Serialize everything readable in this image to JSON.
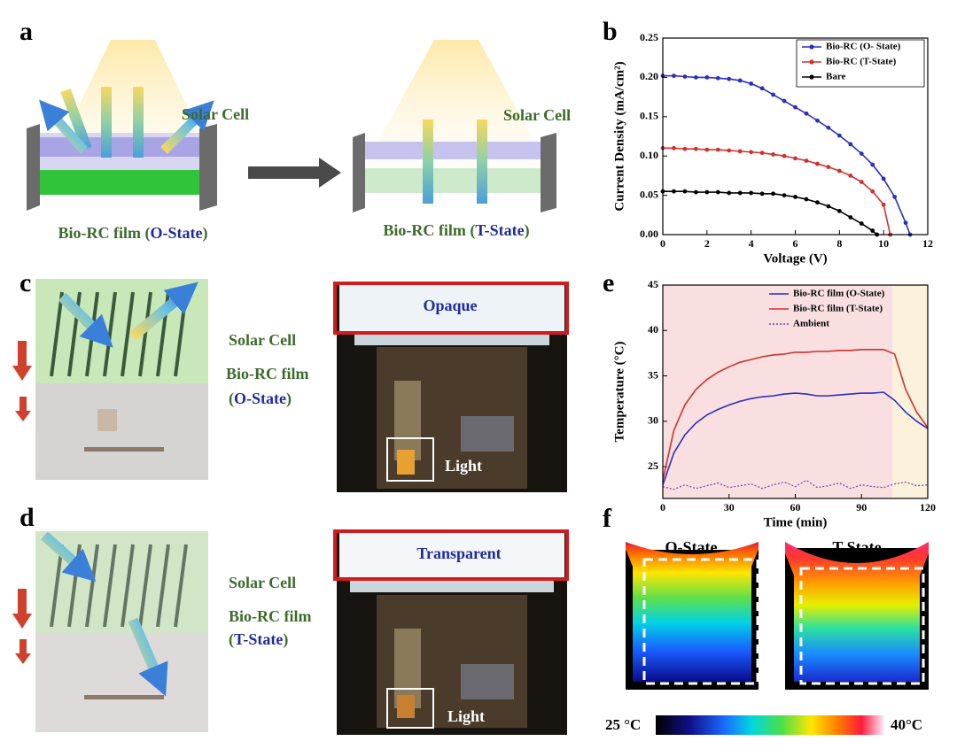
{
  "panel_labels": [
    "a",
    "b",
    "c",
    "d",
    "e",
    "f"
  ],
  "panel_a": {
    "solar_cell_left": "Solar Cell",
    "solar_cell_right": "Solar Cell",
    "film_left": [
      "Bio-RC film (",
      "O-State",
      ")"
    ],
    "film_right": [
      "Bio-RC film (",
      "T-State",
      ")"
    ]
  },
  "panel_c": {
    "solar_cell": "Solar Cell",
    "film": "Bio-RC film",
    "state": [
      "(",
      "O-State",
      ")"
    ],
    "photo_title": "Opaque",
    "light": "Light"
  },
  "panel_d": {
    "solar_cell": "Solar Cell",
    "film": "Bio-RC film",
    "state": [
      "(",
      "T-State",
      ")"
    ],
    "photo_title": "Transparent",
    "light": "Light"
  },
  "panel_f": {
    "left": "O-State",
    "right": "T-State",
    "scale_min": "25 °C",
    "scale_max": "40°C"
  },
  "chart_data": [
    {
      "type": "line",
      "xlabel": "Voltage (V)",
      "ylabel": "Current Density (mA/cm²)",
      "xlim": [
        0,
        12
      ],
      "ylim": [
        0,
        0.25
      ],
      "xticks": [
        0,
        2,
        4,
        6,
        8,
        10,
        12
      ],
      "yticks": [
        {
          "value": 0,
          "label": "0.00"
        },
        0.05,
        {
          "value": 0.1,
          "label": "0.10"
        },
        0.15,
        {
          "value": 0.2,
          "label": "0.20"
        },
        0.25
      ],
      "legend": "upper right",
      "legend_frame": true,
      "series": [
        {
          "name": "Bio-RC (O- State)",
          "color": "#2a2fbf",
          "marker": "circle",
          "x": [
            0,
            0.5,
            1,
            1.5,
            2,
            2.5,
            3,
            3.5,
            4,
            4.5,
            5,
            5.5,
            6,
            6.5,
            7,
            7.5,
            8,
            8.5,
            9,
            9.5,
            10,
            10.5,
            11,
            11.2
          ],
          "values": [
            0.202,
            0.202,
            0.201,
            0.2,
            0.2,
            0.199,
            0.198,
            0.196,
            0.192,
            0.186,
            0.178,
            0.17,
            0.162,
            0.154,
            0.145,
            0.136,
            0.126,
            0.115,
            0.103,
            0.089,
            0.071,
            0.048,
            0.015,
            0
          ]
        },
        {
          "name": "Bio-RC (T-State)",
          "color": "#d0312d",
          "marker": "circle",
          "x": [
            0,
            0.5,
            1,
            1.5,
            2,
            2.5,
            3,
            3.5,
            4,
            4.5,
            5,
            5.5,
            6,
            6.5,
            7,
            7.5,
            8,
            8.5,
            9,
            9.5,
            10,
            10.3
          ],
          "values": [
            0.11,
            0.11,
            0.109,
            0.109,
            0.108,
            0.108,
            0.107,
            0.106,
            0.105,
            0.104,
            0.102,
            0.1,
            0.097,
            0.094,
            0.09,
            0.086,
            0.081,
            0.075,
            0.067,
            0.055,
            0.038,
            0
          ]
        },
        {
          "name": "Bare",
          "color": "#000000",
          "marker": "circle",
          "x": [
            0,
            0.5,
            1,
            1.5,
            2,
            2.5,
            3,
            3.5,
            4,
            4.5,
            5,
            5.5,
            6,
            6.5,
            7,
            7.5,
            8,
            8.5,
            9,
            9.5,
            9.7
          ],
          "values": [
            0.055,
            0.055,
            0.055,
            0.054,
            0.054,
            0.054,
            0.053,
            0.053,
            0.053,
            0.052,
            0.052,
            0.05,
            0.048,
            0.045,
            0.041,
            0.036,
            0.03,
            0.022,
            0.014,
            0.005,
            0
          ]
        }
      ]
    },
    {
      "type": "line",
      "xlabel": "Time (min)",
      "ylabel": "Temperature (°C)",
      "xlim": [
        0,
        120
      ],
      "ylim": [
        21.5,
        45
      ],
      "xticks": [
        0,
        30,
        60,
        90,
        120
      ],
      "yticks": [
        25,
        30,
        35,
        40,
        45
      ],
      "legend": "upper right",
      "legend_frame": false,
      "spans": [
        {
          "from": 0,
          "to": 104,
          "color": "#f9dfe0"
        },
        {
          "from": 104,
          "to": 120,
          "color": "#fcf1da"
        }
      ],
      "x": [
        0,
        5,
        10,
        15,
        20,
        25,
        30,
        35,
        40,
        45,
        50,
        55,
        60,
        65,
        70,
        75,
        80,
        85,
        90,
        95,
        100,
        105,
        110,
        115,
        120
      ],
      "series": [
        {
          "name": "Bio-RC film (O-State)",
          "color": "#2a2fbf",
          "values": [
            23,
            26.5,
            28.5,
            29.8,
            30.7,
            31.3,
            31.8,
            32.2,
            32.5,
            32.7,
            32.8,
            33,
            33.1,
            33,
            32.8,
            32.8,
            32.9,
            33,
            33.1,
            33.1,
            33.2,
            32.3,
            31,
            30,
            29.2
          ]
        },
        {
          "name": "Bio-RC film (T-State)",
          "color": "#d0312d",
          "values": [
            23.5,
            29,
            31.8,
            33.5,
            34.6,
            35.4,
            36,
            36.5,
            36.8,
            37.1,
            37.3,
            37.4,
            37.6,
            37.6,
            37.7,
            37.7,
            37.8,
            37.8,
            37.9,
            37.9,
            37.9,
            37.4,
            33.5,
            31,
            29.3
          ]
        },
        {
          "name": "Ambient",
          "color": "#7a3fa0",
          "dash": true,
          "values": [
            22.8,
            22.5,
            23,
            22.6,
            22.9,
            23.2,
            22.7,
            22.9,
            23.1,
            22.6,
            23,
            23.3,
            22.8,
            23.5,
            22.7,
            22.9,
            23.2,
            22.6,
            23,
            22.8,
            22.7,
            23.1,
            23.3,
            22.9,
            23
          ]
        }
      ]
    }
  ]
}
